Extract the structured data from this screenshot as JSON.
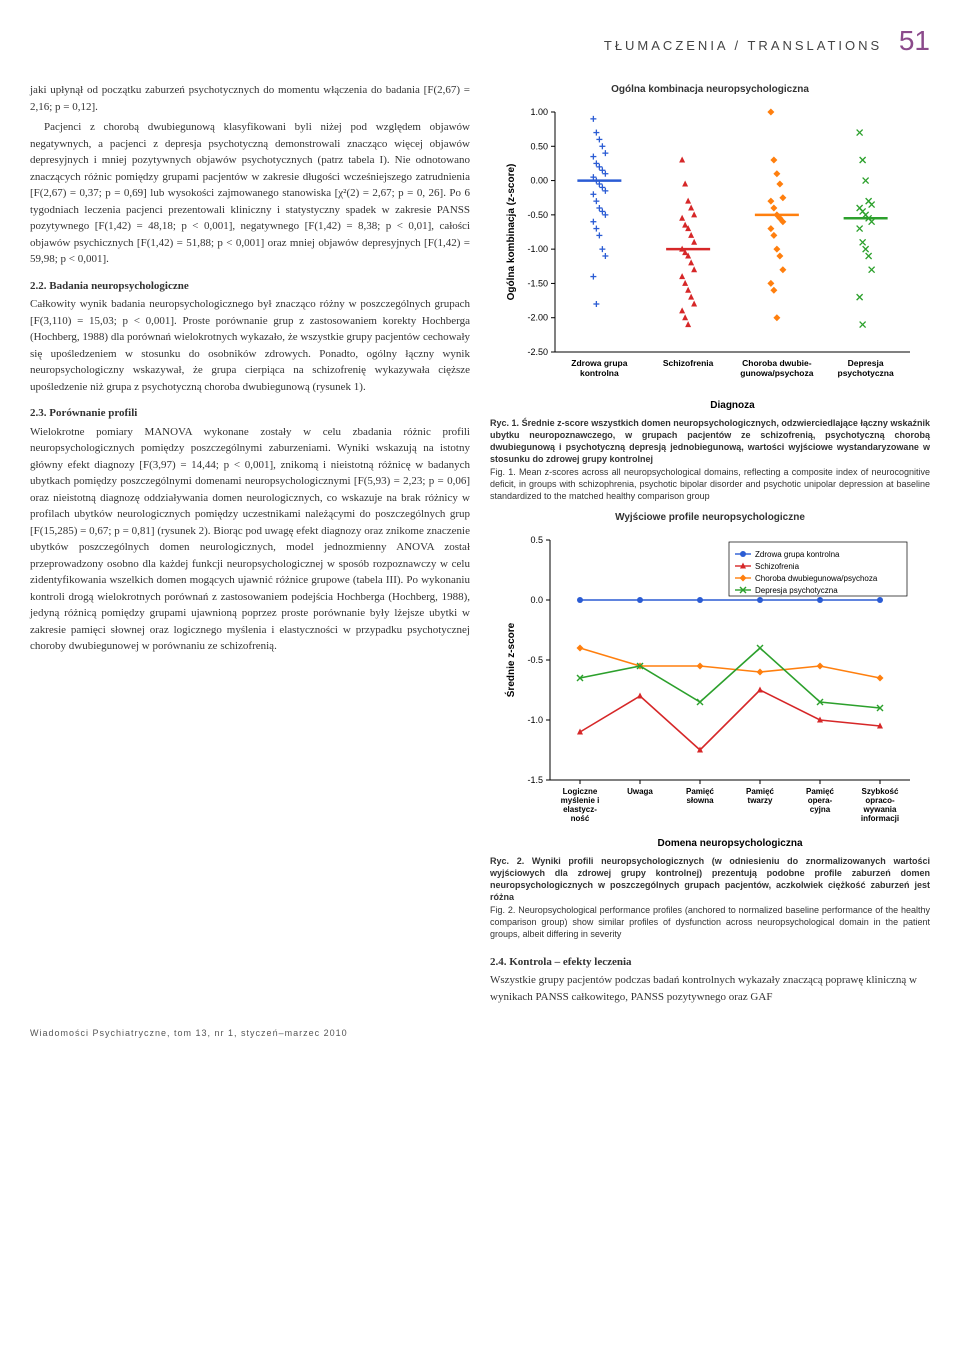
{
  "header": {
    "section": "TŁUMACZENIA / TRANSLATIONS",
    "page": "51"
  },
  "leftCol": {
    "p1": "jaki upłynął od początku zaburzeń psychotycznych do momentu włączenia do badania [F(2,67) = 2,16; p = 0,12].",
    "p2": "Pacjenci z chorobą dwubiegunową klasyfikowani byli niżej pod względem objawów negatywnych, a pacjenci z depresja psychotyczną demonstrowali znacząco więcej objawów depresyjnych i mniej pozytywnych objawów psychotycznych (patrz tabela I). Nie odnotowano znaczących różnic pomiędzy grupami pacjentów w zakresie długości wcześniejszego zatrudnienia [F(2,67) = 0,37; p = 0,69] lub wysokości zajmowanego stanowiska [χ²(2) = 2,67; p = 0, 26]. Po 6 tygodniach leczenia pacjenci prezentowali kliniczny i statystyczny spadek w zakresie PANSS pozytywnego [F(1,42) = 48,18; p < 0,001], negatywnego [F(1,42) = 8,38; p < 0,01], całości objawów psychicznych [F(1,42) = 51,88; p < 0,001] oraz mniej objawów depresyjnych [F(1,42) = 59,98; p < 0,001].",
    "s22_title": "2.2. Badania neuropsychologiczne",
    "s22_body": "Całkowity wynik badania neuropsychologicznego był znacząco różny w poszczególnych grupach [F(3,110) = 15,03; p < 0,001]. Proste porównanie grup z zastosowaniem korekty Hochberga (Hochberg, 1988) dla porównań wielokrotnych wykazało, że wszystkie grupy pacjentów cechowały się upośledzeniem w stosunku do osobników zdrowych. Ponadto, ogólny łączny wynik neuropsychologiczny wskazywał, że grupa cierpiąca na schizofrenię wykazywała cięższe upośledzenie niż grupa z psychotyczną choroba dwubiegunową (rysunek 1).",
    "s23_title": "2.3. Porównanie profili",
    "s23_body": "Wielokrotne pomiary MANOVA wykonane zostały w celu zbadania różnic profili neuropsychologicznych pomiędzy poszczególnymi zaburzeniami. Wyniki wskazują na istotny główny efekt diagnozy [F(3,97) = 14,44; p < 0,001], znikomą i nieistotną różnicę w badanych ubytkach pomiędzy poszczególnymi domenami neuropsychologicznymi [F(5,93) = 2,23; p = 0,06] oraz nieistotną diagnozę oddziaływania domen neurologicznych, co wskazuje na brak różnicy w profilach ubytków neurologicznych pomiędzy uczestnikami należącymi do poszczególnych grup [F(15,285) = 0,67; p = 0,81] (rysunek 2). Biorąc pod uwagę efekt diagnozy oraz znikome znaczenie ubytków poszczególnych domen neurologicznych, model jednozmienny ANOVA został przeprowadzony osobno dla każdej funkcji neuropsychologicznej w sposób rozpoznawczy w celu zidentyfikowania wszelkich domen mogących ujawnić różnice grupowe (tabela III). Po wykonaniu kontroli drogą wielokrotnych porównań z zastosowaniem podejścia Hochberga (Hochberg, 1988), jedyną różnicą pomiędzy grupami ujawnioną poprzez proste porównanie były lżejsze ubytki w zakresie pamięci słownej oraz logicznego myślenia i elastyczności w przypadku psychotycznej choroby dwubiegunowej w porównaniu ze schizofrenią."
  },
  "chart1": {
    "title": "Ogólna kombinacja neuropsychologiczna",
    "ylabel": "Ogólna kombinacja (z-score)",
    "xlabel": "Diagnoza",
    "ylim": [
      -2.5,
      1.0
    ],
    "yticks": [
      1.0,
      0.5,
      0.0,
      -0.5,
      -1.0,
      -1.5,
      -2.0,
      -2.5
    ],
    "categories": [
      "Zdrowa grupa\nkontrolna",
      "Schizofrenia",
      "Choroba dwubie-\ngunowa/psychoza",
      "Depresja\npsychotyczna"
    ],
    "groups": [
      {
        "color": "#2b5cd4",
        "marker": "+",
        "mean": 0.0,
        "points": [
          0.9,
          0.7,
          0.6,
          0.5,
          0.4,
          0.35,
          0.25,
          0.2,
          0.15,
          0.1,
          0.05,
          0.0,
          -0.05,
          -0.1,
          -0.15,
          -0.2,
          -0.3,
          -0.4,
          -0.45,
          -0.5,
          -0.6,
          -0.7,
          -0.8,
          -1.0,
          -1.1,
          -1.4,
          -1.8
        ]
      },
      {
        "color": "#d62728",
        "marker": "^",
        "mean": -1.0,
        "points": [
          0.3,
          -0.05,
          -0.3,
          -0.4,
          -0.5,
          -0.55,
          -0.65,
          -0.7,
          -0.8,
          -0.9,
          -1.0,
          -1.05,
          -1.1,
          -1.2,
          -1.3,
          -1.4,
          -1.5,
          -1.6,
          -1.7,
          -1.8,
          -1.9,
          -2.0,
          -2.1
        ]
      },
      {
        "color": "#ff7f0e",
        "marker": "o",
        "mean": -0.5,
        "points": [
          1.0,
          0.3,
          0.1,
          -0.05,
          -0.25,
          -0.3,
          -0.4,
          -0.5,
          -0.55,
          -0.6,
          -0.7,
          -0.8,
          -1.0,
          -1.1,
          -1.3,
          -1.5,
          -1.6,
          -2.0
        ]
      },
      {
        "color": "#2ca02c",
        "marker": "x",
        "mean": -0.55,
        "points": [
          0.7,
          0.3,
          0.0,
          -0.3,
          -0.35,
          -0.4,
          -0.45,
          -0.5,
          -0.55,
          -0.6,
          -0.7,
          -0.9,
          -1.0,
          -1.1,
          -1.3,
          -1.7,
          -2.1
        ]
      }
    ],
    "background": "#ffffff",
    "axis_color": "#000000"
  },
  "caption1": {
    "bold": "Ryc. 1. Średnie z-score wszystkich domen neuropsychologicznych, odzwierciedlające łączny wskaźnik ubytku neuropoznawczego, w grupach pacjentów ze schizofrenią, psychotyczną chorobą dwubiegunową i psychotyczną depresją jednobiegunową, wartości wyjściowe wystandaryzowane w stosunku do zdrowej grupy kontrolnej",
    "plain": "Fig. 1. Mean z-scores across all neuropsychological domains, reflecting a composite index of neurocognitive deficit, in groups with schizophrenia, psychotic bipolar disorder and psychotic unipolar depression at baseline standardized to the matched healthy comparison group"
  },
  "chart2": {
    "title": "Wyjściowe profile neuropsychologiczne",
    "ylabel": "Średnie z-score",
    "xlabel": "Domena neuropsychologiczna",
    "ylim": [
      -1.5,
      0.5
    ],
    "yticks": [
      0.5,
      0.0,
      -0.5,
      -1.0,
      -1.5
    ],
    "categories": [
      "Logiczne\nmyślenie i\nelastycz-\nność",
      "Uwaga",
      "Pamięć\nsłowna",
      "Pamięć\ntwarzy",
      "Pamięć\nopera-\ncyjna",
      "Szybkość\nopraco-\nwywania\ninformacji"
    ],
    "legend": [
      {
        "label": "Zdrowa grupa kontrolna",
        "color": "#2b5cd4",
        "marker": "circle"
      },
      {
        "label": "Schizofrenia",
        "color": "#d62728",
        "marker": "triangle"
      },
      {
        "label": "Choroba dwubiegunowa/psychoza",
        "color": "#ff7f0e",
        "marker": "diamond"
      },
      {
        "label": "Depresja psychotyczna",
        "color": "#2ca02c",
        "marker": "x"
      }
    ],
    "series": [
      {
        "color": "#2b5cd4",
        "marker": "circle",
        "values": [
          0.0,
          0.0,
          0.0,
          0.0,
          0.0,
          0.0
        ]
      },
      {
        "color": "#d62728",
        "marker": "triangle",
        "values": [
          -1.1,
          -0.8,
          -1.25,
          -0.75,
          -1.0,
          -1.05
        ]
      },
      {
        "color": "#ff7f0e",
        "marker": "diamond",
        "values": [
          -0.4,
          -0.55,
          -0.55,
          -0.6,
          -0.55,
          -0.65
        ]
      },
      {
        "color": "#2ca02c",
        "marker": "x",
        "values": [
          -0.65,
          -0.55,
          -0.85,
          -0.4,
          -0.85,
          -0.9
        ]
      }
    ],
    "background": "#ffffff",
    "axis_color": "#000000"
  },
  "caption2": {
    "bold": "Ryc. 2. Wyniki profili neuropsychologicznych (w odniesieniu do znormalizowanych wartości wyjściowych dla zdrowej grupy kontrolnej) prezentują podobne profile zaburzeń domen neuropsychologicznych w poszczególnych grupach pacjentów, aczkolwiek ciężkość zaburzeń jest różna",
    "plain": "Fig. 2. Neuropsychological performance profiles (anchored to normalized baseline performance of the healthy comparison group) show similar profiles of dysfunction across neuropsychological domain in the patient groups, albeit differing in severity"
  },
  "s24": {
    "title": "2.4. Kontrola – efekty leczenia",
    "body": "Wszystkie grupy pacjentów podczas badań kontrolnych wykazały znaczącą poprawę kliniczną w wynikach PANSS całkowitego, PANSS pozytywnego oraz GAF"
  },
  "footer": "Wiadomości Psychiatryczne, tom 13, nr 1, styczeń–marzec 2010"
}
